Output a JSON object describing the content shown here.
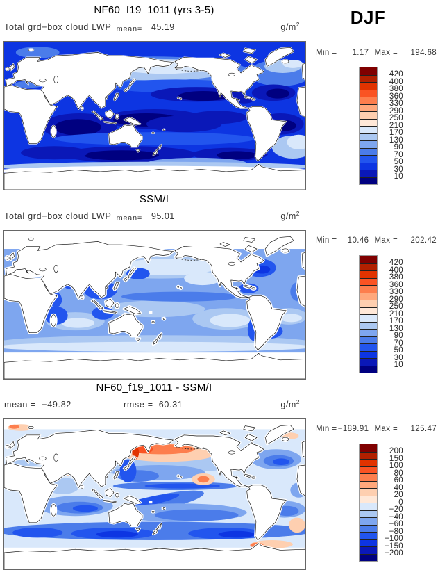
{
  "chart_data": {
    "type": "filled-contour-world-maps",
    "season": "DJF",
    "units": "g/m",
    "units_exp": "2",
    "palette": [
      "#800000",
      "#b22000",
      "#e13300",
      "#fa5323",
      "#fd7e4d",
      "#ffa87c",
      "#fecfb0",
      "#ffe8d8",
      "#d9e8fb",
      "#abc8f2",
      "#7ea6ef",
      "#4b7cea",
      "#2255ee",
      "#0d35e2",
      "#0a18b8",
      "#000080"
    ],
    "panels": [
      {
        "name": "model",
        "title": "NF60_f19_1011 (yrs 3-5)",
        "variable": "Total grd−box cloud LWP",
        "stats": [
          {
            "label": "mean=",
            "value": "45.19"
          }
        ],
        "min_label": "Min =",
        "min_value": "1.17",
        "max_label": "Max =",
        "max_value": "194.68",
        "levels": [
          "420",
          "400",
          "380",
          "360",
          "330",
          "290",
          "250",
          "210",
          "170",
          "130",
          "90",
          "70",
          "50",
          "30",
          "10"
        ]
      },
      {
        "name": "observations",
        "title": "SSM/I",
        "variable": "Total grd−box cloud LWP",
        "stats": [
          {
            "label": "mean=",
            "value": "95.01"
          }
        ],
        "min_label": "Min =",
        "min_value": "10.46",
        "max_label": "Max =",
        "max_value": "202.42",
        "levels": [
          "420",
          "400",
          "380",
          "360",
          "330",
          "290",
          "250",
          "210",
          "170",
          "130",
          "90",
          "70",
          "50",
          "30",
          "10"
        ]
      },
      {
        "name": "difference",
        "title": "NF60_f19_1011 - SSM/I",
        "stats": [
          {
            "label": "mean =",
            "value": "−49.82"
          },
          {
            "label": "rmse =",
            "value": "60.31"
          }
        ],
        "min_label": "Min =",
        "min_value": "−189.91",
        "max_label": "Max =",
        "max_value": "125.47",
        "levels": [
          "200",
          "150",
          "100",
          "80",
          "60",
          "40",
          "20",
          "0",
          "−20",
          "−40",
          "−60",
          "−80",
          "−100",
          "−150",
          "−200"
        ]
      }
    ]
  }
}
